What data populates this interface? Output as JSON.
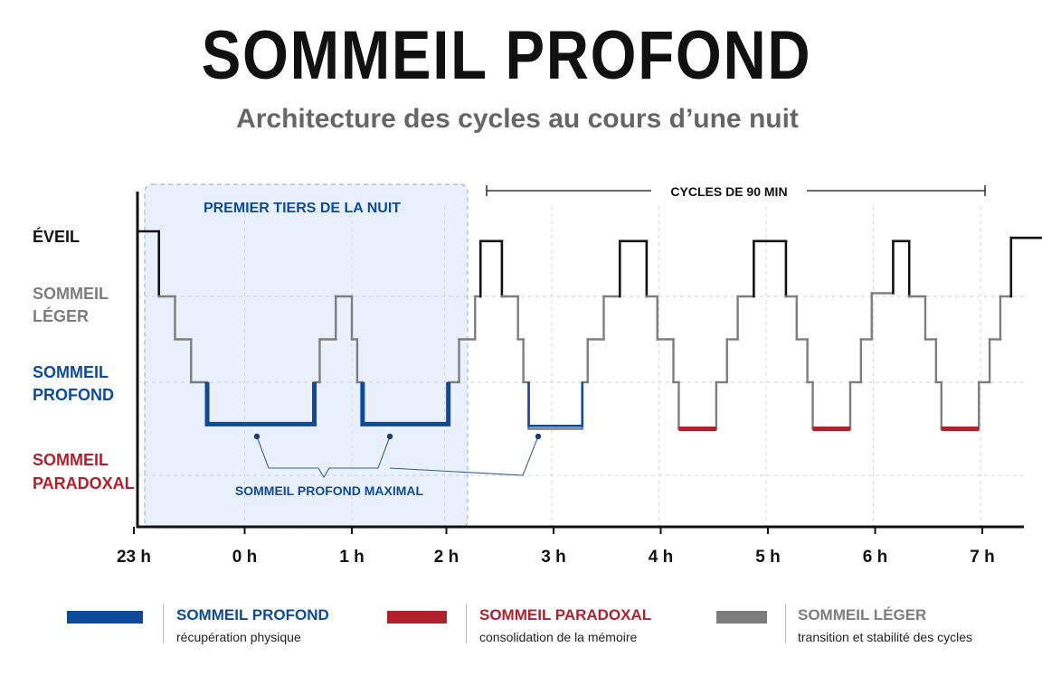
{
  "title": "SOMMEIL PROFOND",
  "subtitle": "Architecture des cycles au cours d’une nuit",
  "colors": {
    "deep": "#0d4a9a",
    "rem": "#b0212d",
    "light": "#7d7d7d",
    "wake": "#111111",
    "highlight_bg": "#e9f0fb"
  },
  "chart_data": {
    "type": "line",
    "y_categories": [
      {
        "key": "wake",
        "label": "ÉVEIL"
      },
      {
        "key": "light",
        "label": "SOMMEIL LÉGER"
      },
      {
        "key": "deep",
        "label": "SOMMEIL PROFOND"
      },
      {
        "key": "rem",
        "label": "SOMMEIL PARADOXAL"
      }
    ],
    "x_ticks": [
      {
        "label": "23 h",
        "value": 23
      },
      {
        "label": "0 h",
        "value": 24
      },
      {
        "label": "1 h",
        "value": 25
      },
      {
        "label": "2 h",
        "value": 26
      },
      {
        "label": "3 h",
        "value": 27
      },
      {
        "label": "4 h",
        "value": 28
      },
      {
        "label": "5 h",
        "value": 29
      },
      {
        "label": "6 h",
        "value": 30
      },
      {
        "label": "7 h",
        "value": 31
      }
    ],
    "xlim": [
      23,
      31.4
    ],
    "hypnogram": [
      [
        23.0,
        0.0
      ],
      [
        23.2,
        0.0
      ],
      [
        23.2,
        1.0
      ],
      [
        23.35,
        1.0
      ],
      [
        23.35,
        1.5
      ],
      [
        23.5,
        1.5
      ],
      [
        23.5,
        2.0
      ],
      [
        23.65,
        2.0
      ],
      [
        23.65,
        2.45
      ],
      [
        24.65,
        2.45
      ],
      [
        24.65,
        2.0
      ],
      [
        24.7,
        2.0
      ],
      [
        24.7,
        1.5
      ],
      [
        24.85,
        1.5
      ],
      [
        24.85,
        1.0
      ],
      [
        25.0,
        1.0
      ],
      [
        25.0,
        1.5
      ],
      [
        25.05,
        1.5
      ],
      [
        25.05,
        2.0
      ],
      [
        25.1,
        2.0
      ],
      [
        25.1,
        2.45
      ],
      [
        25.9,
        2.45
      ],
      [
        25.9,
        2.0
      ],
      [
        26.0,
        2.0
      ],
      [
        26.0,
        1.5
      ],
      [
        26.15,
        1.5
      ],
      [
        26.15,
        1.0
      ],
      [
        26.2,
        1.0
      ],
      [
        26.2,
        0.15
      ],
      [
        26.4,
        0.15
      ],
      [
        26.4,
        1.0
      ],
      [
        26.55,
        1.0
      ],
      [
        26.55,
        1.5
      ],
      [
        26.6,
        1.5
      ],
      [
        26.6,
        2.0
      ],
      [
        26.65,
        2.0
      ],
      [
        26.65,
        2.5
      ],
      [
        27.15,
        2.5
      ],
      [
        27.15,
        2.0
      ],
      [
        27.2,
        2.0
      ],
      [
        27.2,
        1.5
      ],
      [
        27.35,
        1.5
      ],
      [
        27.35,
        1.0
      ],
      [
        27.5,
        1.0
      ],
      [
        27.5,
        0.15
      ],
      [
        27.75,
        0.15
      ],
      [
        27.75,
        1.0
      ],
      [
        27.85,
        1.0
      ],
      [
        27.85,
        1.5
      ],
      [
        28.0,
        1.5
      ],
      [
        28.0,
        2.0
      ],
      [
        28.05,
        2.0
      ],
      [
        28.05,
        2.5
      ],
      [
        28.4,
        2.5
      ],
      [
        28.4,
        2.0
      ],
      [
        28.5,
        2.0
      ],
      [
        28.5,
        1.5
      ],
      [
        28.6,
        1.5
      ],
      [
        28.6,
        1.0
      ],
      [
        28.75,
        1.0
      ],
      [
        28.75,
        0.15
      ],
      [
        29.05,
        0.15
      ],
      [
        29.05,
        1.0
      ],
      [
        29.15,
        1.0
      ],
      [
        29.15,
        1.5
      ],
      [
        29.25,
        1.5
      ],
      [
        29.25,
        2.0
      ],
      [
        29.3,
        2.0
      ],
      [
        29.3,
        2.5
      ],
      [
        29.65,
        2.5
      ],
      [
        29.65,
        2.0
      ],
      [
        29.75,
        2.0
      ],
      [
        29.75,
        1.5
      ],
      [
        29.85,
        1.5
      ],
      [
        29.85,
        0.95
      ],
      [
        30.05,
        0.95
      ],
      [
        30.05,
        0.15
      ],
      [
        30.2,
        0.15
      ],
      [
        30.2,
        1.0
      ],
      [
        30.35,
        1.0
      ],
      [
        30.35,
        1.5
      ],
      [
        30.45,
        1.5
      ],
      [
        30.45,
        2.0
      ],
      [
        30.5,
        2.0
      ],
      [
        30.5,
        2.5
      ],
      [
        30.85,
        2.5
      ],
      [
        30.85,
        2.0
      ],
      [
        30.95,
        2.0
      ],
      [
        30.95,
        1.5
      ],
      [
        31.05,
        1.5
      ],
      [
        31.05,
        1.0
      ],
      [
        31.15,
        1.0
      ],
      [
        31.15,
        0.1
      ],
      [
        31.45,
        0.1
      ],
      [
        31.45,
        0.0
      ],
      [
        31.55,
        0.0
      ]
    ],
    "deep_segments": [
      [
        23.65,
        24.65
      ],
      [
        25.1,
        25.9
      ],
      [
        26.65,
        27.15
      ]
    ],
    "rem_segments": [
      [
        28.05,
        28.4
      ],
      [
        29.3,
        29.65
      ],
      [
        30.5,
        30.85
      ]
    ],
    "annotations": {
      "highlight_label": "PREMIER TIERS DE LA NUIT",
      "cycles_label": "CYCLES DE 90 MIN",
      "deep_label": "SOMMEIL PROFOND MAXIMAL"
    }
  },
  "legend": [
    {
      "key": "deep",
      "name": "SOMMEIL PROFOND",
      "desc": "récupération physique"
    },
    {
      "key": "rem",
      "name": "SOMMEIL PARADOXAL",
      "desc": "consolidation de la mémoire"
    },
    {
      "key": "light",
      "name": "SOMMEIL LÉGER",
      "desc": "transition et stabilité des cycles"
    }
  ]
}
